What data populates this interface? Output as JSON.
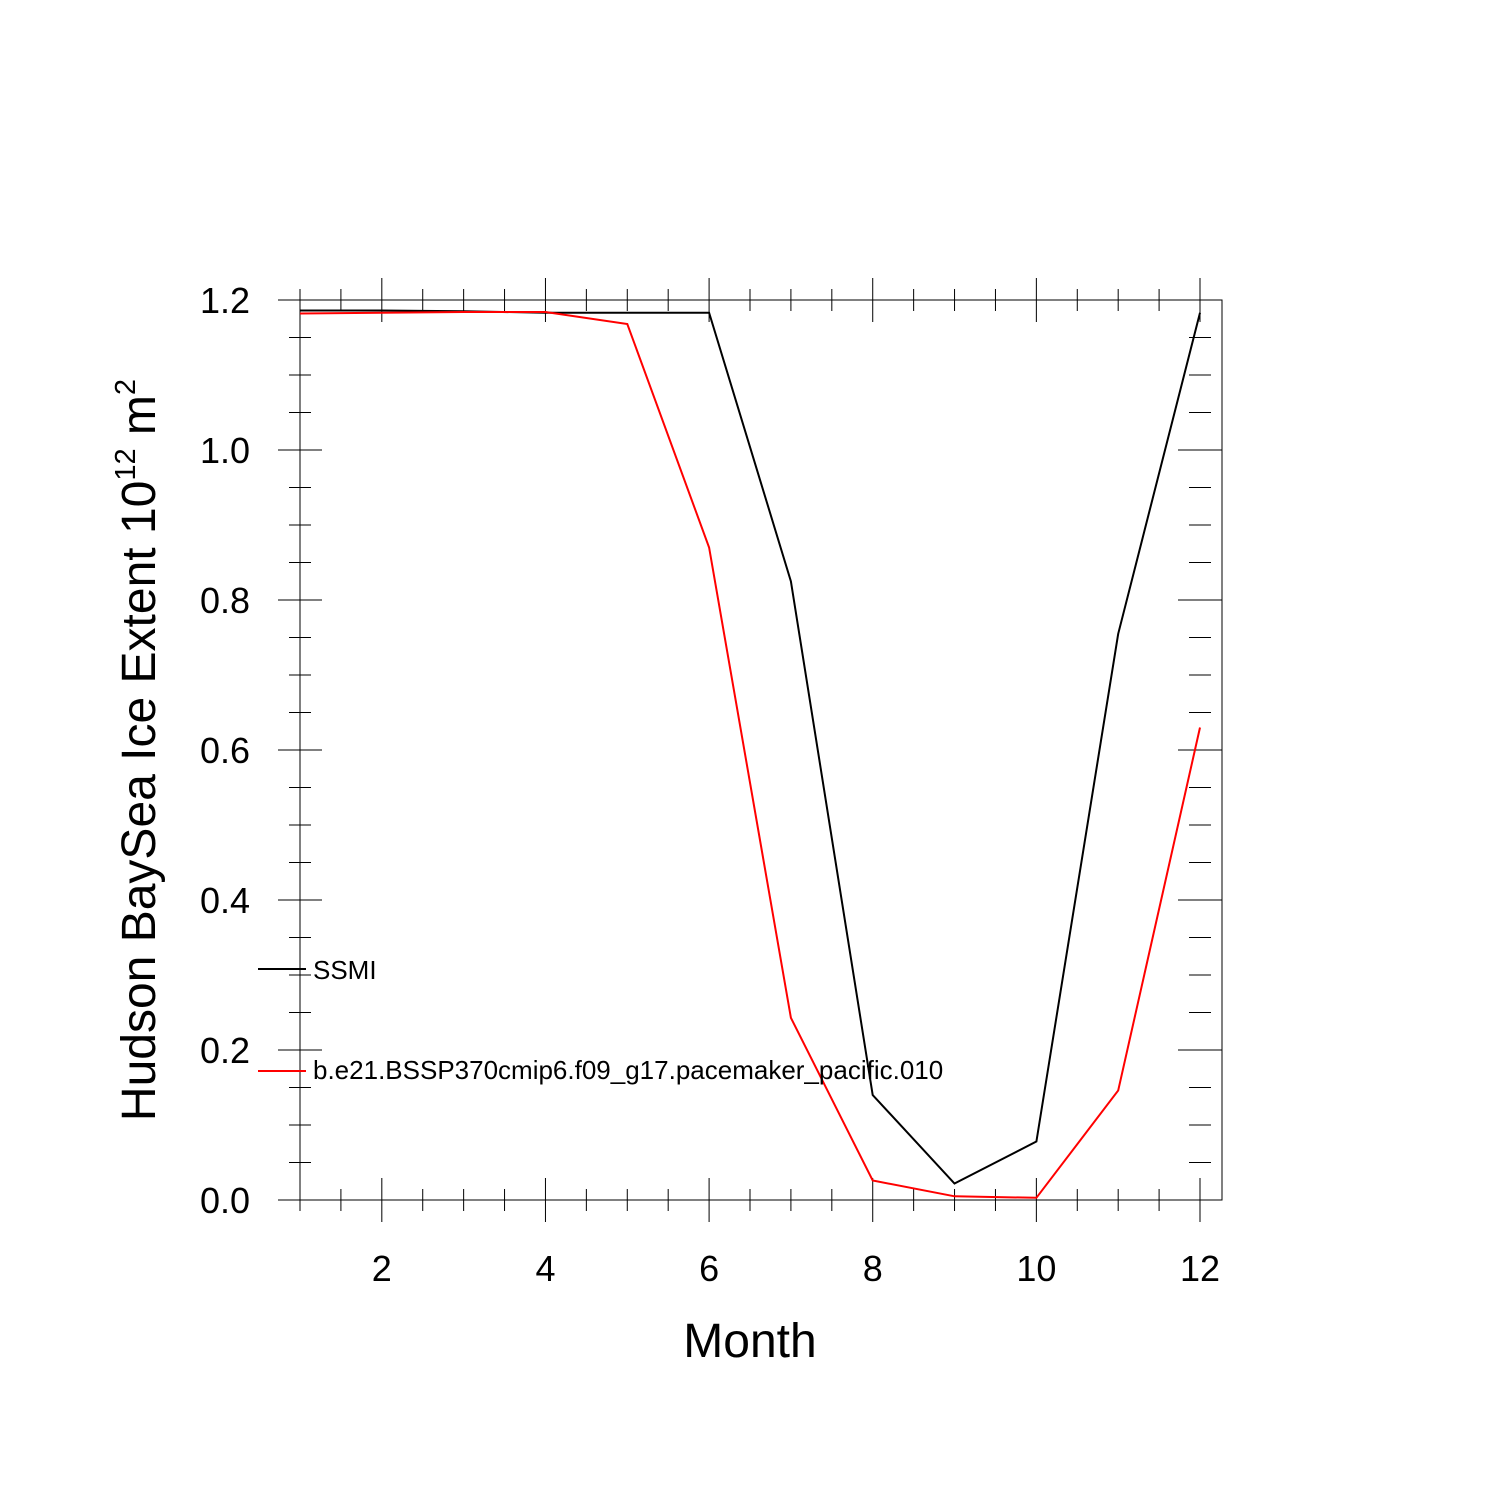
{
  "chart_data": {
    "type": "line",
    "xlabel": "Month",
    "ylabel": {
      "prefix": "Hudson BaySea Ice Extent 10",
      "exponent": "12",
      "unit": "m",
      "unit_exponent": "2"
    },
    "xlim": [
      1,
      12
    ],
    "ylim": [
      0,
      1.2
    ],
    "x_ticks": [
      2,
      4,
      6,
      8,
      10,
      12
    ],
    "y_ticks": [
      0.0,
      0.2,
      0.4,
      0.6,
      0.8,
      1.0,
      1.2
    ],
    "x_tick_labels": [
      "2",
      "4",
      "6",
      "8",
      "10",
      "12"
    ],
    "y_tick_labels": [
      "0.0",
      "0.2",
      "0.4",
      "0.6",
      "0.8",
      "1.0",
      "1.2"
    ],
    "grid": false,
    "legend_position": "left, inside",
    "x": [
      1,
      2,
      3,
      4,
      5,
      6,
      7,
      8,
      9,
      10,
      11,
      12
    ],
    "series": [
      {
        "name": "SSMI",
        "color": "#000000",
        "values": [
          1.186,
          1.186,
          1.185,
          1.183,
          1.183,
          1.183,
          0.825,
          0.14,
          0.022,
          0.078,
          0.755,
          1.183
        ]
      },
      {
        "name": "b.e21.BSSP370cmip6.f09_g17.pacemaker_pacific.010",
        "color": "#ff0000",
        "values": [
          1.182,
          1.183,
          1.184,
          1.184,
          1.168,
          0.87,
          0.243,
          0.026,
          0.005,
          0.003,
          0.146,
          0.63
        ]
      }
    ]
  }
}
